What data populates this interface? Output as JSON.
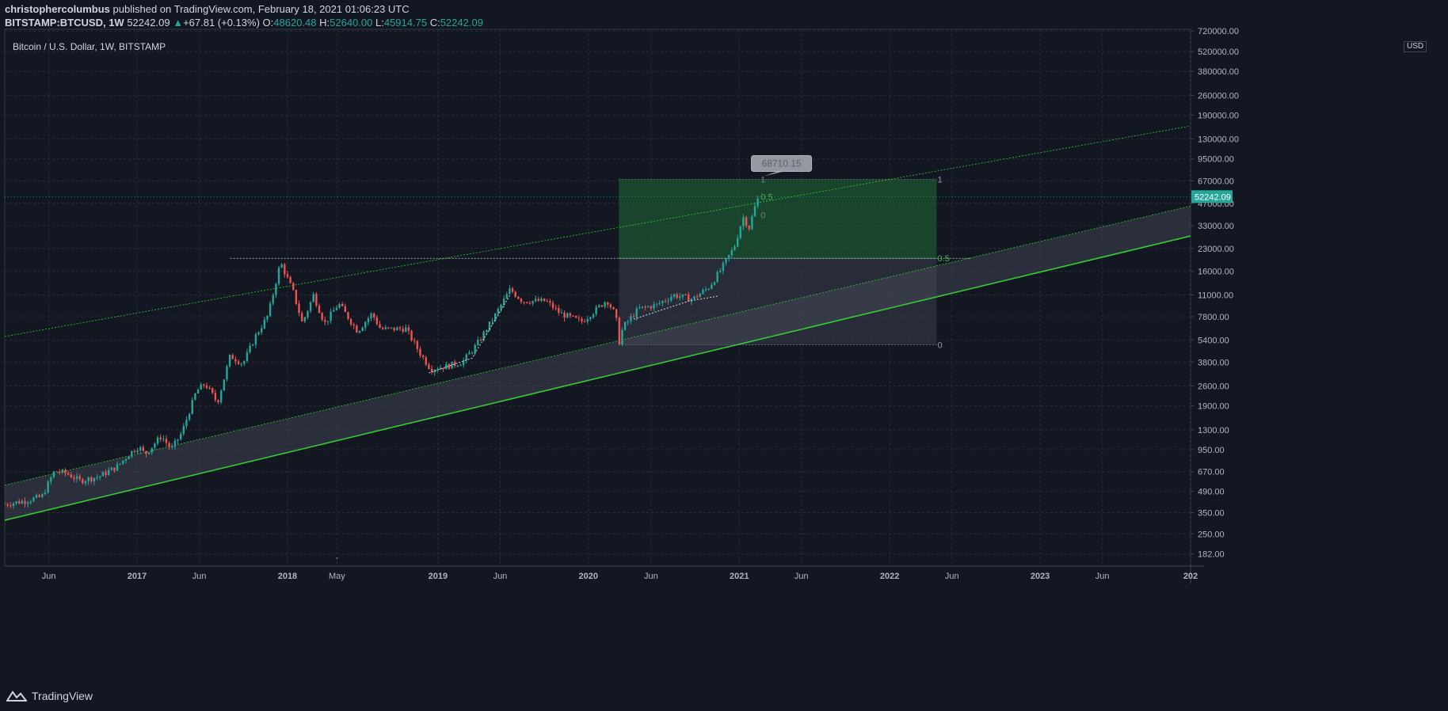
{
  "header": {
    "author": "christophercolumbus",
    "published_text": " published on TradingView.com, February 18, 2021 01:06:23 UTC",
    "symbol": "BITSTAMP:BTCUSD, 1W",
    "price": "52242.09",
    "change_arrow": "▲",
    "change": "+67.81 (+0.13%)",
    "o_label": "O:",
    "o_value": "48620.48",
    "h_label": "H:",
    "h_value": "52640.00",
    "l_label": "L:",
    "l_value": "45914.75",
    "c_label": "C:",
    "c_value": "52242.09"
  },
  "footer": {
    "brand": "TradingView",
    "logo_icon": "tradingview-logo-icon"
  },
  "colors": {
    "background": "#131722",
    "up": "#26a69a",
    "down": "#ef5350",
    "channel_line": "#33cc33",
    "fib_box": "#1e5631",
    "price_tag": "#26a69a"
  },
  "chart_data": {
    "type": "candlestick",
    "title": "Bitcoin / U.S. Dollar, 1W, BITSTAMP",
    "currency": "USD",
    "y_scale": "log",
    "ylim": [
      150,
      740000
    ],
    "xlim": [
      "2016-02-15",
      "2024-01-01"
    ],
    "grid": true,
    "y_ticks": [
      "720000.00",
      "520000.00",
      "380000.00",
      "260000.00",
      "190000.00",
      "130000.00",
      "95000.00",
      "67000.00",
      "47000.00",
      "33000.00",
      "23000.00",
      "16000.00",
      "11000.00",
      "7800.00",
      "5400.00",
      "3800.00",
      "2600.00",
      "1900.00",
      "1300.00",
      "950.00",
      "670.00",
      "490.00",
      "350.00",
      "250.00",
      "182.00"
    ],
    "x_ticks": [
      {
        "label": "Jun",
        "date": "2016-06-01",
        "bold": false
      },
      {
        "label": "2017",
        "date": "2017-01-01",
        "bold": true
      },
      {
        "label": "Jun",
        "date": "2017-06-01",
        "bold": false
      },
      {
        "label": "2018",
        "date": "2018-01-01",
        "bold": true
      },
      {
        "label": "May",
        "date": "2018-05-01",
        "bold": false
      },
      {
        "label": "2019",
        "date": "2019-01-01",
        "bold": true
      },
      {
        "label": "Jun",
        "date": "2019-06-01",
        "bold": false
      },
      {
        "label": "2020",
        "date": "2020-01-01",
        "bold": true
      },
      {
        "label": "Jun",
        "date": "2020-06-01",
        "bold": false
      },
      {
        "label": "2021",
        "date": "2021-01-01",
        "bold": true
      },
      {
        "label": "Jun",
        "date": "2021-06-01",
        "bold": false
      },
      {
        "label": "2022",
        "date": "2022-01-01",
        "bold": true
      },
      {
        "label": "Jun",
        "date": "2022-06-01",
        "bold": false
      },
      {
        "label": "2023",
        "date": "2023-01-01",
        "bold": true
      },
      {
        "label": "Jun",
        "date": "2023-06-01",
        "bold": false
      },
      {
        "label": "202",
        "date": "2024-01-01",
        "bold": true
      }
    ],
    "price_path": [
      [
        "2016-02-15",
        400
      ],
      [
        "2016-04-01",
        420
      ],
      [
        "2016-05-15",
        450
      ],
      [
        "2016-06-15",
        680
      ],
      [
        "2016-07-15",
        650
      ],
      [
        "2016-08-15",
        580
      ],
      [
        "2016-10-01",
        620
      ],
      [
        "2016-11-15",
        730
      ],
      [
        "2016-12-15",
        900
      ],
      [
        "2017-01-05",
        1000
      ],
      [
        "2017-01-20",
        880
      ],
      [
        "2017-03-01",
        1180
      ],
      [
        "2017-03-25",
        950
      ],
      [
        "2017-04-20",
        1250
      ],
      [
        "2017-05-25",
        2400
      ],
      [
        "2017-06-15",
        2700
      ],
      [
        "2017-07-15",
        2000
      ],
      [
        "2017-08-15",
        4200
      ],
      [
        "2017-09-15",
        3700
      ],
      [
        "2017-10-15",
        5700
      ],
      [
        "2017-11-15",
        8000
      ],
      [
        "2017-12-15",
        18500
      ],
      [
        "2018-01-15",
        11500
      ],
      [
        "2018-02-06",
        7000
      ],
      [
        "2018-03-05",
        11000
      ],
      [
        "2018-04-01",
        7000
      ],
      [
        "2018-05-05",
        9600
      ],
      [
        "2018-06-20",
        6200
      ],
      [
        "2018-07-25",
        8200
      ],
      [
        "2018-08-15",
        6400
      ],
      [
        "2018-10-15",
        6450
      ],
      [
        "2018-11-20",
        4300
      ],
      [
        "2018-12-15",
        3400
      ],
      [
        "2019-01-20",
        3550
      ],
      [
        "2019-03-01",
        3800
      ],
      [
        "2019-04-05",
        5000
      ],
      [
        "2019-05-20",
        8000
      ],
      [
        "2019-06-25",
        12000
      ],
      [
        "2019-07-25",
        10000
      ],
      [
        "2019-09-20",
        10000
      ],
      [
        "2019-10-25",
        8200
      ],
      [
        "2019-12-15",
        7200
      ],
      [
        "2020-01-25",
        9000
      ],
      [
        "2020-02-15",
        10200
      ],
      [
        "2020-03-08",
        7900
      ],
      [
        "2020-03-14",
        5000
      ],
      [
        "2020-03-25",
        6600
      ],
      [
        "2020-05-01",
        8800
      ],
      [
        "2020-06-15",
        9400
      ],
      [
        "2020-07-25",
        11000
      ],
      [
        "2020-09-10",
        10300
      ],
      [
        "2020-10-20",
        12500
      ],
      [
        "2020-11-15",
        16000
      ],
      [
        "2020-12-20",
        23500
      ],
      [
        "2021-01-10",
        38000
      ],
      [
        "2021-01-25",
        32000
      ],
      [
        "2021-02-10",
        46500
      ],
      [
        "2021-02-18",
        52242
      ]
    ],
    "channel": {
      "lower_line": [
        [
          "2016-02-15",
          310
        ],
        [
          "2024-01-01",
          28000
        ]
      ],
      "middle_line": [
        [
          "2016-02-15",
          540
        ],
        [
          "2024-01-01",
          45000
        ]
      ],
      "upper_line": [
        [
          "2016-02-15",
          5700
        ],
        [
          "2024-01-01",
          160000
        ]
      ]
    },
    "fib": {
      "start": "2020-03-15",
      "end": "2022-04-25",
      "level_1": 68710.15,
      "level_05": 19665,
      "level_0": 5000,
      "labels": [
        "1",
        "0.5",
        "0"
      ]
    },
    "fib_small": {
      "labels": [
        "1",
        "0.5",
        "0"
      ],
      "level_1": 68710.15,
      "level_05": 52000,
      "level_0": 39000
    },
    "horizontal_level": {
      "value": 19665,
      "from": "2017-08-15",
      "to": "2022-07-15"
    },
    "current_price_line": 52242.09,
    "price_tag": "52242.09",
    "callout": "68710.15",
    "arrow_paths": [
      [
        [
          "2018-12-10",
          3200
        ],
        [
          "2019-03-25",
          4050
        ],
        [
          "2019-06-25",
          11000
        ]
      ],
      [
        [
          "2020-04-20",
          7500
        ],
        [
          "2020-09-01",
          10000
        ],
        [
          "2020-11-10",
          10800
        ]
      ]
    ]
  }
}
